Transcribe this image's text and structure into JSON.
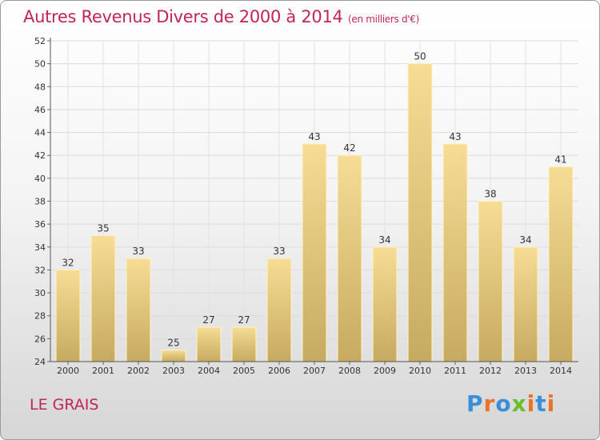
{
  "chart_data": {
    "type": "bar",
    "title": "Autres Revenus Divers de 2000 à 2014",
    "subtitle": "(en milliers d'€)",
    "categories": [
      "2000",
      "2001",
      "2002",
      "2003",
      "2004",
      "2005",
      "2006",
      "2007",
      "2008",
      "2009",
      "2010",
      "2011",
      "2012",
      "2013",
      "2014"
    ],
    "values": [
      32,
      35,
      33,
      25,
      27,
      27,
      33,
      43,
      42,
      34,
      50,
      43,
      38,
      34,
      41
    ],
    "ylim": [
      24,
      52
    ],
    "yticks": [
      24,
      26,
      28,
      30,
      32,
      34,
      36,
      38,
      40,
      42,
      44,
      46,
      48,
      50,
      52
    ],
    "grid": true,
    "bar_color": "#e9cf86",
    "title_color": "#c0245a"
  },
  "footer": {
    "town": "LE GRAIS",
    "logo": [
      "P",
      "r",
      "o",
      "x",
      "i",
      "t",
      "i"
    ]
  }
}
